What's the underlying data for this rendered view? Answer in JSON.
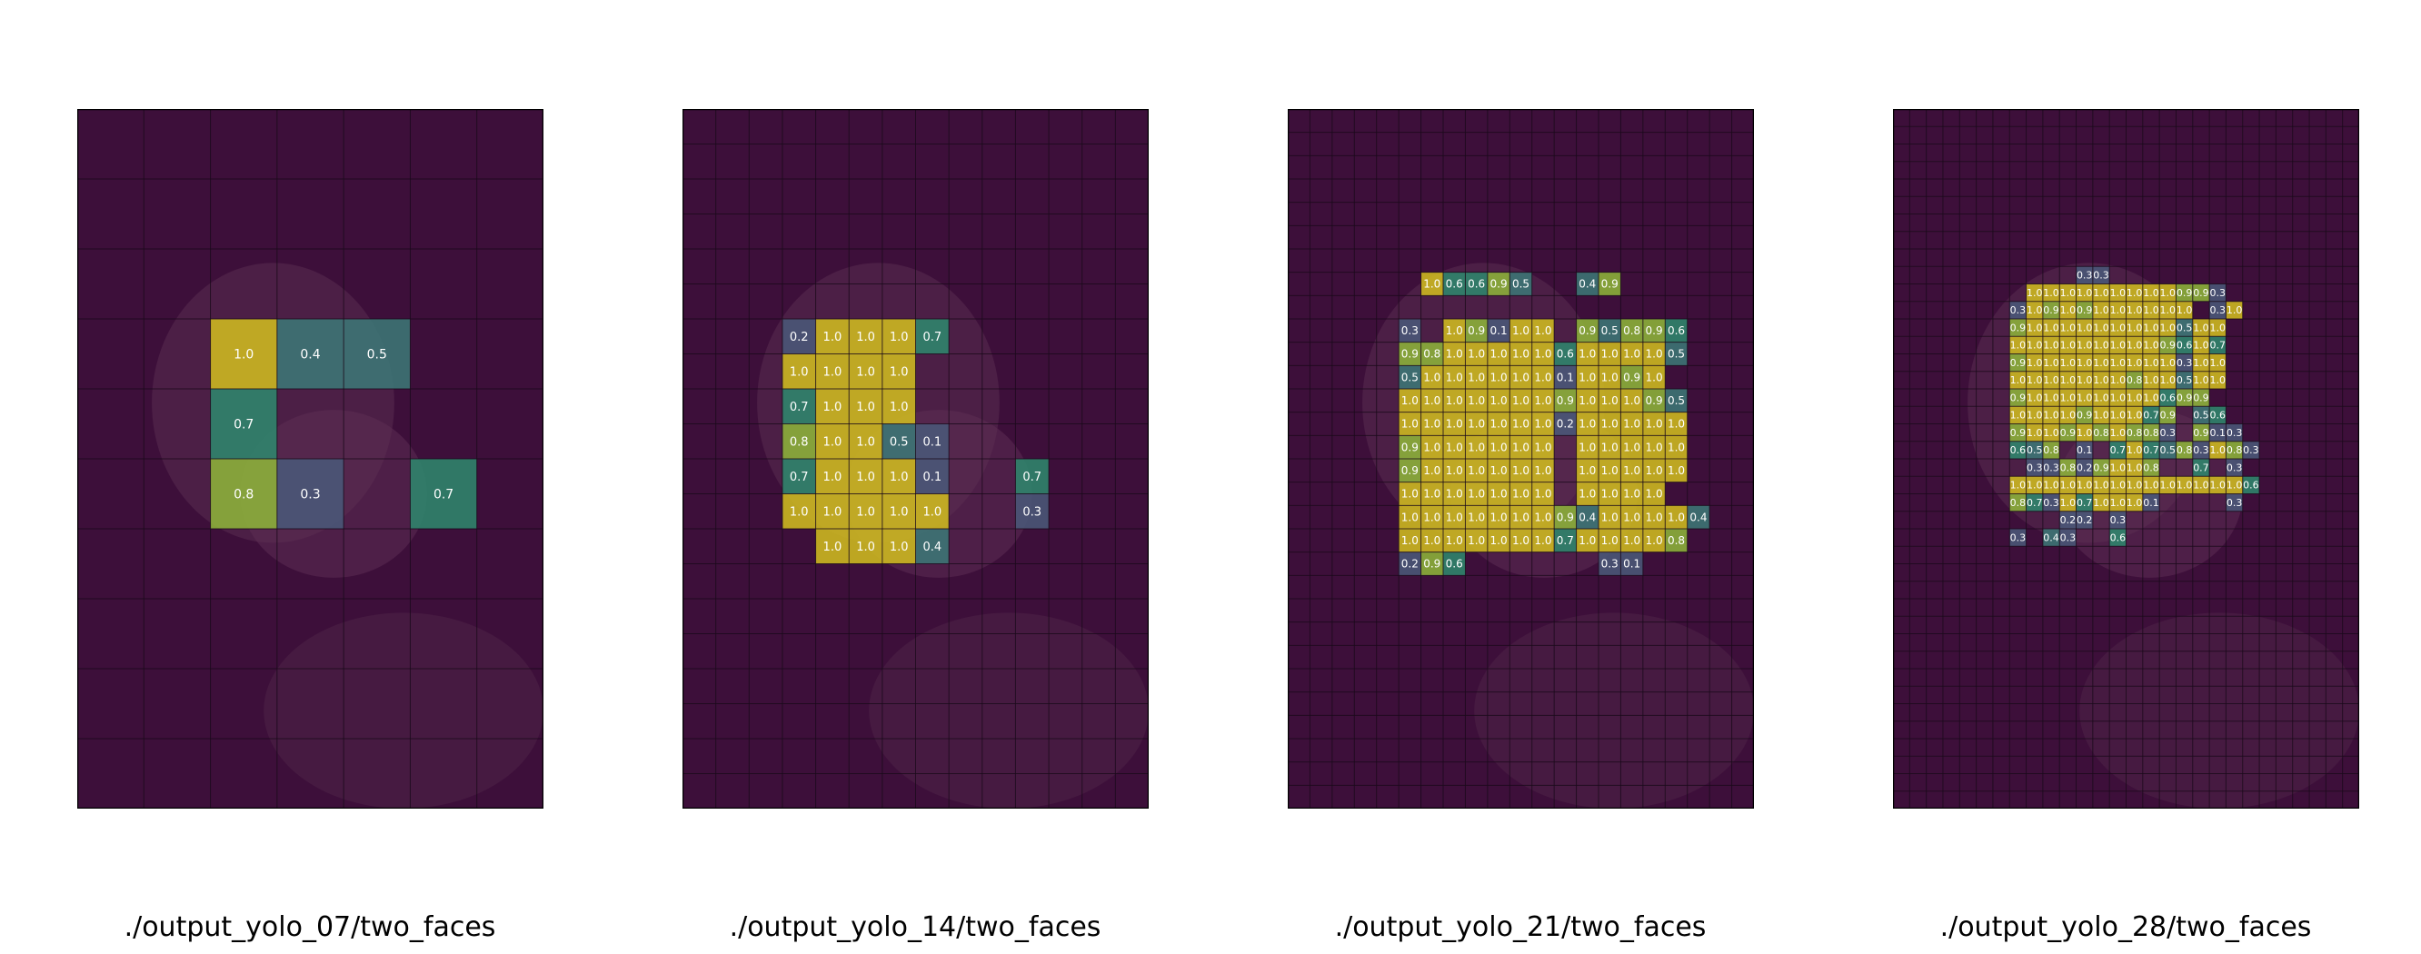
{
  "figure": {
    "captions": [
      "./output_yolo_07/two_faces",
      "./output_yolo_14/two_faces",
      "./output_yolo_21/two_faces",
      "./output_yolo_28/two_faces"
    ]
  },
  "colors": {
    "background_tint": "#3d0f3a",
    "grid_line": "#1a0a1a",
    "high": "#d4c11f",
    "mid": "#2e8b6f",
    "low": "#4a5a7a",
    "label": "#ffffff"
  },
  "chart_data": [
    {
      "type": "heatmap",
      "caption": "./output_yolo_07/two_faces",
      "cols": 7,
      "rows": 10,
      "cells": [
        {
          "r": 3,
          "c": 2,
          "v": 1.0
        },
        {
          "r": 3,
          "c": 3,
          "v": 0.4
        },
        {
          "r": 3,
          "c": 4,
          "v": 0.5
        },
        {
          "r": 4,
          "c": 2,
          "v": 0.7
        },
        {
          "r": 5,
          "c": 2,
          "v": 0.8
        },
        {
          "r": 5,
          "c": 3,
          "v": 0.3
        },
        {
          "r": 5,
          "c": 5,
          "v": 0.7
        }
      ]
    },
    {
      "type": "heatmap",
      "caption": "./output_yolo_14/two_faces",
      "cols": 14,
      "rows": 20,
      "cells": [
        {
          "r": 6,
          "c": 3,
          "v": 0.2
        },
        {
          "r": 6,
          "c": 4,
          "v": 1.0
        },
        {
          "r": 6,
          "c": 5,
          "v": 1.0
        },
        {
          "r": 6,
          "c": 6,
          "v": 1.0
        },
        {
          "r": 6,
          "c": 7,
          "v": 0.7
        },
        {
          "r": 7,
          "c": 3,
          "v": 1.0
        },
        {
          "r": 7,
          "c": 4,
          "v": 1.0
        },
        {
          "r": 7,
          "c": 5,
          "v": 1.0
        },
        {
          "r": 7,
          "c": 6,
          "v": 1.0
        },
        {
          "r": 8,
          "c": 3,
          "v": 0.7
        },
        {
          "r": 8,
          "c": 4,
          "v": 1.0
        },
        {
          "r": 8,
          "c": 5,
          "v": 1.0
        },
        {
          "r": 8,
          "c": 6,
          "v": 1.0
        },
        {
          "r": 9,
          "c": 3,
          "v": 0.8
        },
        {
          "r": 9,
          "c": 4,
          "v": 1.0
        },
        {
          "r": 9,
          "c": 5,
          "v": 1.0
        },
        {
          "r": 9,
          "c": 6,
          "v": 0.5
        },
        {
          "r": 9,
          "c": 7,
          "v": 0.1
        },
        {
          "r": 10,
          "c": 3,
          "v": 0.7
        },
        {
          "r": 10,
          "c": 4,
          "v": 1.0
        },
        {
          "r": 10,
          "c": 5,
          "v": 1.0
        },
        {
          "r": 10,
          "c": 6,
          "v": 1.0
        },
        {
          "r": 10,
          "c": 7,
          "v": 0.1
        },
        {
          "r": 10,
          "c": 10,
          "v": 0.7
        },
        {
          "r": 11,
          "c": 3,
          "v": 1.0
        },
        {
          "r": 11,
          "c": 4,
          "v": 1.0
        },
        {
          "r": 11,
          "c": 5,
          "v": 1.0
        },
        {
          "r": 11,
          "c": 6,
          "v": 1.0
        },
        {
          "r": 11,
          "c": 7,
          "v": 1.0
        },
        {
          "r": 11,
          "c": 10,
          "v": 0.3
        },
        {
          "r": 12,
          "c": 4,
          "v": 1.0
        },
        {
          "r": 12,
          "c": 5,
          "v": 1.0
        },
        {
          "r": 12,
          "c": 6,
          "v": 1.0
        },
        {
          "r": 12,
          "c": 7,
          "v": 0.4
        }
      ]
    },
    {
      "type": "heatmap",
      "caption": "./output_yolo_21/two_faces",
      "cols": 21,
      "rows": 30,
      "rowsData": [
        {
          "r": 7,
          "c0": 6,
          "vals": [
            1.0,
            0.6,
            0.6,
            0.9,
            0.5,
            null,
            null,
            0.4,
            0.9
          ]
        },
        {
          "r": 9,
          "c0": 5,
          "vals": [
            0.3,
            null,
            1.0,
            0.9,
            0.1,
            1.0,
            1.0,
            null,
            0.9,
            0.5,
            0.8,
            0.9,
            0.6
          ]
        },
        {
          "r": 10,
          "c0": 5,
          "vals": [
            0.9,
            0.8,
            1.0,
            1.0,
            1.0,
            1.0,
            1.0,
            0.6,
            1.0,
            1.0,
            1.0,
            1.0,
            0.5
          ]
        },
        {
          "r": 11,
          "c0": 5,
          "vals": [
            0.5,
            1.0,
            1.0,
            1.0,
            1.0,
            1.0,
            1.0,
            0.1,
            1.0,
            1.0,
            0.9,
            1.0,
            null
          ]
        },
        {
          "r": 12,
          "c0": 5,
          "vals": [
            1.0,
            1.0,
            1.0,
            1.0,
            1.0,
            1.0,
            1.0,
            0.9,
            1.0,
            1.0,
            1.0,
            0.9,
            0.5
          ]
        },
        {
          "r": 13,
          "c0": 5,
          "vals": [
            1.0,
            1.0,
            1.0,
            1.0,
            1.0,
            1.0,
            1.0,
            0.2,
            1.0,
            1.0,
            1.0,
            1.0,
            1.0
          ]
        },
        {
          "r": 14,
          "c0": 5,
          "vals": [
            0.9,
            1.0,
            1.0,
            1.0,
            1.0,
            1.0,
            1.0,
            null,
            1.0,
            1.0,
            1.0,
            1.0,
            1.0
          ]
        },
        {
          "r": 15,
          "c0": 5,
          "vals": [
            0.9,
            1.0,
            1.0,
            1.0,
            1.0,
            1.0,
            1.0,
            null,
            1.0,
            1.0,
            1.0,
            1.0,
            1.0
          ]
        },
        {
          "r": 16,
          "c0": 5,
          "vals": [
            1.0,
            1.0,
            1.0,
            1.0,
            1.0,
            1.0,
            1.0,
            null,
            1.0,
            1.0,
            1.0,
            1.0,
            null
          ]
        },
        {
          "r": 17,
          "c0": 5,
          "vals": [
            1.0,
            1.0,
            1.0,
            1.0,
            1.0,
            1.0,
            1.0,
            0.9,
            0.4,
            1.0,
            1.0,
            1.0,
            1.0,
            0.4
          ]
        },
        {
          "r": 18,
          "c0": 5,
          "vals": [
            1.0,
            1.0,
            1.0,
            1.0,
            1.0,
            1.0,
            1.0,
            0.7,
            1.0,
            1.0,
            1.0,
            1.0,
            0.8
          ]
        },
        {
          "r": 19,
          "c0": 5,
          "vals": [
            0.2,
            0.9,
            0.6,
            null,
            null,
            null,
            null,
            null,
            null,
            0.3,
            0.1
          ]
        }
      ]
    },
    {
      "type": "heatmap",
      "caption": "./output_yolo_28/two_faces",
      "cols": 28,
      "rows": 40,
      "rowsData": [
        {
          "r": 9,
          "c0": 11,
          "vals": [
            0.3,
            0.3
          ]
        },
        {
          "r": 10,
          "c0": 8,
          "vals": [
            1.0,
            1.0,
            1.0,
            1.0,
            1.0,
            1.0,
            1.0,
            1.0,
            1.0,
            0.9,
            0.9,
            0.3
          ]
        },
        {
          "r": 11,
          "c0": 7,
          "vals": [
            0.3,
            1.0,
            0.9,
            1.0,
            0.9,
            1.0,
            1.0,
            1.0,
            1.0,
            1.0,
            1.0,
            null,
            0.3,
            1.0
          ]
        },
        {
          "r": 12,
          "c0": 7,
          "vals": [
            0.9,
            1.0,
            1.0,
            1.0,
            1.0,
            1.0,
            1.0,
            1.0,
            1.0,
            1.0,
            0.5,
            1.0,
            1.0
          ]
        },
        {
          "r": 13,
          "c0": 7,
          "vals": [
            1.0,
            1.0,
            1.0,
            1.0,
            1.0,
            1.0,
            1.0,
            1.0,
            1.0,
            0.9,
            0.6,
            1.0,
            0.7
          ]
        },
        {
          "r": 14,
          "c0": 7,
          "vals": [
            0.9,
            1.0,
            1.0,
            1.0,
            1.0,
            1.0,
            1.0,
            1.0,
            1.0,
            1.0,
            0.3,
            1.0,
            1.0
          ]
        },
        {
          "r": 15,
          "c0": 7,
          "vals": [
            1.0,
            1.0,
            1.0,
            1.0,
            1.0,
            1.0,
            1.0,
            0.8,
            1.0,
            1.0,
            0.5,
            1.0,
            1.0
          ]
        },
        {
          "r": 16,
          "c0": 7,
          "vals": [
            0.9,
            1.0,
            1.0,
            1.0,
            1.0,
            1.0,
            1.0,
            1.0,
            1.0,
            0.6,
            0.9,
            0.9
          ]
        },
        {
          "r": 17,
          "c0": 7,
          "vals": [
            1.0,
            1.0,
            1.0,
            1.0,
            0.9,
            1.0,
            1.0,
            1.0,
            0.7,
            0.9,
            null,
            0.5,
            0.6
          ]
        },
        {
          "r": 18,
          "c0": 7,
          "vals": [
            0.9,
            1.0,
            1.0,
            0.9,
            1.0,
            0.8,
            1.0,
            0.8,
            0.8,
            0.3,
            null,
            0.9,
            0.1,
            0.3
          ]
        },
        {
          "r": 19,
          "c0": 7,
          "vals": [
            0.6,
            0.5,
            0.8,
            null,
            0.1,
            null,
            0.7,
            1.0,
            0.7,
            0.5,
            0.8,
            0.3,
            1.0,
            0.8,
            0.3
          ]
        },
        {
          "r": 20,
          "c0": 8,
          "vals": [
            0.3,
            0.3,
            0.8,
            0.2,
            0.9,
            1.0,
            1.0,
            0.8,
            null,
            null,
            0.7,
            null,
            0.3
          ]
        },
        {
          "r": 21,
          "c0": 7,
          "vals": [
            1.0,
            1.0,
            1.0,
            1.0,
            1.0,
            1.0,
            1.0,
            1.0,
            1.0,
            1.0,
            1.0,
            1.0,
            1.0,
            1.0,
            0.6
          ]
        },
        {
          "r": 22,
          "c0": 7,
          "vals": [
            0.8,
            0.7,
            0.3,
            1.0,
            0.7,
            1.0,
            1.0,
            1.0,
            0.1,
            null,
            null,
            null,
            null,
            0.3
          ]
        },
        {
          "r": 23,
          "c0": 10,
          "vals": [
            0.2,
            0.2,
            null,
            0.3
          ]
        },
        {
          "r": 24,
          "c0": 7,
          "vals": [
            0.3,
            null,
            0.4,
            0.3,
            null,
            null,
            0.6
          ]
        }
      ]
    }
  ]
}
